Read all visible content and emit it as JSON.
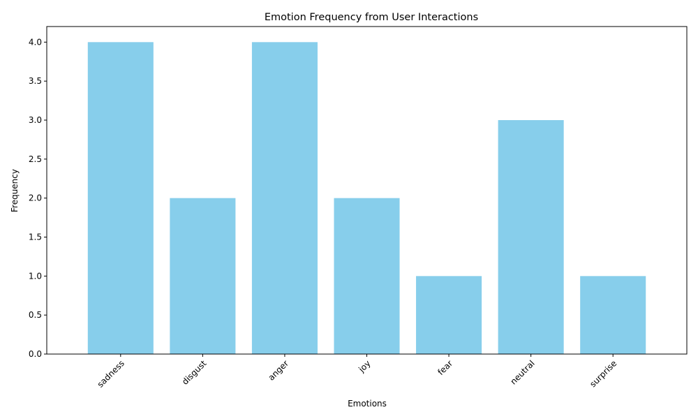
{
  "chart_data": {
    "type": "bar",
    "title": "Emotion Frequency from User Interactions",
    "xlabel": "Emotions",
    "ylabel": "Frequency",
    "categories": [
      "sadness",
      "disgust",
      "anger",
      "joy",
      "fear",
      "neutral",
      "surprise"
    ],
    "values": [
      4,
      2,
      4,
      2,
      1,
      3,
      1
    ],
    "ylim": [
      0,
      4.2
    ],
    "yticks": [
      "0.0",
      "0.5",
      "1.0",
      "1.5",
      "2.0",
      "2.5",
      "3.0",
      "3.5",
      "4.0"
    ],
    "bar_color": "#87CEEB",
    "grid": false,
    "legend": "none",
    "xtick_rotation": 45
  }
}
